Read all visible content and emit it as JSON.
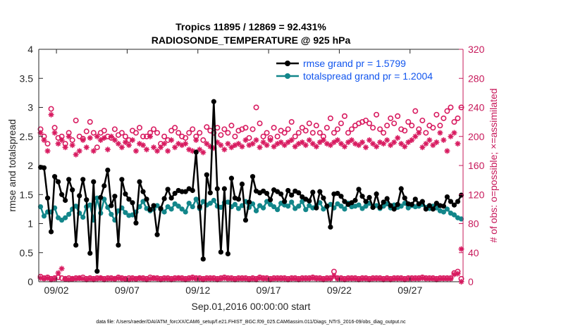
{
  "chart_data": {
    "type": "line",
    "title_line1": "Tropics 11895 / 12869 = 92.431%",
    "title_line2": "RADIOSONDE_TEMPERATURE @ 925 hPa",
    "xlabel": "Sep.01,2016 00:00:00 start",
    "ylabel_left": "rmse and totalspread",
    "ylabel_right": "# of obs: o=possible; ×=assimilated",
    "footer": "data file: /Users/raeder/DAI/ATM_forcXX/CAM6_setup/f.e21.FHIST_BGC.f09_025.CAM6assim.011/Diags_NTrS_2016-09/obs_diag_output.nc",
    "xlim": [
      0.75,
      30.75
    ],
    "ylim_left": [
      0,
      4
    ],
    "ylim_right": [
      0,
      320
    ],
    "x_ticks": [
      {
        "x": 2,
        "label": "09/02"
      },
      {
        "x": 7,
        "label": "09/07"
      },
      {
        "x": 12,
        "label": "09/12"
      },
      {
        "x": 17,
        "label": "09/17"
      },
      {
        "x": 22,
        "label": "09/22"
      },
      {
        "x": 27,
        "label": "09/27"
      }
    ],
    "y_ticks_left": [
      {
        "v": 0,
        "label": "0"
      },
      {
        "v": 0.5,
        "label": "0.5"
      },
      {
        "v": 1,
        "label": "1"
      },
      {
        "v": 1.5,
        "label": "1.5"
      },
      {
        "v": 2,
        "label": "2"
      },
      {
        "v": 2.5,
        "label": "2.5"
      },
      {
        "v": 3,
        "label": "3"
      },
      {
        "v": 3.5,
        "label": "3.5"
      },
      {
        "v": 4,
        "label": "4"
      }
    ],
    "y_ticks_right": [
      {
        "v": 0,
        "label": "0"
      },
      {
        "v": 40,
        "label": "40"
      },
      {
        "v": 80,
        "label": "80"
      },
      {
        "v": 120,
        "label": "120"
      },
      {
        "v": 160,
        "label": "160"
      },
      {
        "v": 200,
        "label": "200"
      },
      {
        "v": 240,
        "label": "240"
      },
      {
        "v": 280,
        "label": "280"
      },
      {
        "v": 320,
        "label": "320"
      }
    ],
    "legend": [
      {
        "name": "rmse grand pr = 1.5799",
        "color": "#000000"
      },
      {
        "name": "totalspread grand pr = 1.2004",
        "color": "#12868a"
      }
    ],
    "legend_location": "top-right",
    "colors": {
      "rmse": "#000000",
      "spread": "#12868a",
      "obs": "#d81b60",
      "axis": "#262626",
      "right_axis": "#c7185a"
    },
    "x_start": 0.875,
    "x_step": 0.25,
    "rmse": [
      1.97,
      1.96,
      1.44,
      0.86,
      1.81,
      1.72,
      1.5,
      1.4,
      1.76,
      1.58,
      0.63,
      1.48,
      1.76,
      1.41,
      0.49,
      1.72,
      0.18,
      1.45,
      1.65,
      1.92,
      1.31,
      1.47,
      0.63,
      1.76,
      1.51,
      1.42,
      1.36,
      1.01,
      1.72,
      1.55,
      1.42,
      1.24,
      1.31,
      0.81,
      1.26,
      1.43,
      1.59,
      1.44,
      1.52,
      1.57,
      1.55,
      1.55,
      1.6,
      1.57,
      2.23,
      1.29,
      0.39,
      1.84,
      1.53,
      3.1,
      1.6,
      0.51,
      1.6,
      0.48,
      1.78,
      1.44,
      1.42,
      1.68,
      1.06,
      1.37,
      1.81,
      1.56,
      1.53,
      1.56,
      1.52,
      1.41,
      1.58,
      1.55,
      1.51,
      1.38,
      1.57,
      1.49,
      1.56,
      1.53,
      1.46,
      1.42,
      1.39,
      1.54,
      1.27,
      1.55,
      1.44,
      1.3,
      0.94,
      1.51,
      1.52,
      1.47,
      1.38,
      1.33,
      1.36,
      1.4,
      1.59,
      1.47,
      1.38,
      1.45,
      1.28,
      1.51,
      1.28,
      1.37,
      1.43,
      1.31,
      1.25,
      1.33,
      1.6,
      1.44,
      1.34,
      1.33,
      1.42,
      1.34,
      1.38,
      1.25,
      1.31,
      1.25,
      1.35,
      1.31,
      1.3,
      1.46,
      1.38,
      1.32,
      1.38,
      1.49
    ],
    "spread": [
      1.29,
      1.13,
      1.2,
      1.2,
      1.27,
      1.1,
      1.06,
      1.1,
      1.16,
      1.25,
      1.3,
      1.18,
      1.11,
      1.29,
      1.32,
      1.06,
      1.44,
      1.18,
      1.42,
      1.28,
      1.16,
      1.06,
      1.22,
      1.27,
      1.19,
      1.14,
      1.15,
      1.2,
      1.29,
      1.38,
      1.26,
      1.22,
      1.25,
      1.31,
      1.25,
      1.2,
      1.29,
      1.25,
      1.34,
      1.3,
      1.25,
      1.2,
      1.35,
      1.29,
      1.42,
      1.26,
      1.38,
      1.32,
      1.35,
      1.4,
      1.3,
      1.28,
      1.36,
      1.37,
      1.29,
      1.33,
      1.26,
      1.31,
      1.38,
      1.28,
      1.34,
      1.22,
      1.31,
      1.27,
      1.38,
      1.33,
      1.29,
      1.24,
      1.35,
      1.32,
      1.3,
      1.37,
      1.26,
      1.3,
      1.38,
      1.24,
      1.31,
      1.27,
      1.3,
      1.36,
      1.25,
      1.29,
      1.33,
      1.27,
      1.34,
      1.3,
      1.25,
      1.35,
      1.29,
      1.3,
      1.32,
      1.26,
      1.3,
      1.35,
      1.28,
      1.31,
      1.26,
      1.3,
      1.34,
      1.27,
      1.32,
      1.28,
      1.3,
      1.35,
      1.27,
      1.31,
      1.29,
      1.3,
      1.33,
      1.28,
      1.26,
      1.3,
      1.27,
      1.22,
      1.2,
      1.25,
      1.18,
      1.15,
      1.1,
      1.08
    ],
    "possible": [
      210,
      200,
      190,
      238,
      212,
      198,
      200,
      190,
      205,
      195,
      222,
      200,
      197,
      207,
      220,
      205,
      185,
      205,
      208,
      200,
      198,
      210,
      202,
      205,
      200,
      195,
      208,
      205,
      212,
      200,
      200,
      205,
      210,
      205,
      190,
      200,
      195,
      208,
      212,
      205,
      200,
      198,
      205,
      210,
      200,
      205,
      195,
      213,
      208,
      205,
      212,
      202,
      210,
      205,
      215,
      200,
      208,
      210,
      212,
      198,
      210,
      240,
      218,
      200,
      205,
      198,
      212,
      200,
      208,
      205,
      210,
      220,
      200,
      205,
      212,
      208,
      218,
      205,
      215,
      205,
      200,
      212,
      225,
      205,
      210,
      218,
      228,
      205,
      210,
      215,
      218,
      220,
      222,
      218,
      212,
      230,
      210,
      205,
      215,
      225,
      218,
      228,
      210,
      208,
      220,
      215,
      235,
      210,
      222,
      205,
      215,
      212,
      230,
      215,
      225,
      235,
      240,
      220,
      225,
      240
    ],
    "assimilated": [
      205,
      195,
      180,
      230,
      205,
      190,
      195,
      185,
      200,
      188,
      175,
      180,
      195,
      185,
      198,
      180,
      200,
      195,
      198,
      182,
      200,
      195,
      190,
      185,
      192,
      188,
      195,
      180,
      190,
      188,
      182,
      200,
      185,
      180,
      185,
      190,
      180,
      195,
      185,
      190,
      188,
      190,
      182,
      180,
      195,
      182,
      178,
      190,
      186,
      184,
      192,
      188,
      182,
      190,
      185,
      188,
      190,
      186,
      195,
      188,
      190,
      195,
      185,
      192,
      188,
      195,
      186,
      190,
      192,
      188,
      192,
      195,
      186,
      190,
      192,
      188,
      195,
      190,
      186,
      192,
      195,
      190,
      188,
      192,
      195,
      190,
      186,
      192,
      195,
      190,
      188,
      192,
      185,
      195,
      190,
      186,
      192,
      190,
      195,
      188,
      192,
      198,
      190,
      186,
      192,
      195,
      200,
      205,
      185,
      190,
      195,
      188,
      192,
      205,
      195,
      180,
      200,
      205,
      190,
      45
    ],
    "possible_low": [
      7,
      5,
      6,
      4,
      5,
      6,
      5,
      4,
      5,
      4,
      5,
      5,
      6,
      4,
      5,
      4,
      5,
      5,
      4,
      5,
      5,
      4,
      6,
      5,
      4,
      5,
      5,
      4,
      5,
      5,
      4,
      6,
      5,
      5,
      4,
      5,
      5,
      4,
      5,
      5,
      5,
      4,
      5,
      6,
      5,
      5,
      4,
      5,
      5,
      5,
      4,
      5,
      6,
      5,
      5,
      4,
      5,
      5,
      5,
      4,
      5,
      4,
      6,
      5,
      5,
      4,
      5,
      5,
      5,
      5,
      4,
      5,
      5,
      4,
      5,
      5,
      5,
      6,
      5,
      5,
      4,
      5,
      5,
      14,
      5,
      5,
      4,
      5,
      5,
      5,
      4,
      5,
      5,
      4,
      5,
      5,
      5,
      4,
      5,
      4,
      5,
      5,
      5,
      4,
      5,
      5,
      5,
      5,
      6,
      5,
      5,
      5,
      4,
      5,
      5,
      5,
      5,
      12,
      14,
      4
    ],
    "assimilated_low": [
      5,
      4,
      5,
      3,
      4,
      12,
      18,
      4,
      3,
      4,
      4,
      5,
      4,
      3,
      4,
      3,
      4,
      5,
      3,
      4,
      4,
      4,
      5,
      4,
      4,
      3,
      4,
      4,
      5,
      4,
      3,
      4,
      5,
      4,
      3,
      4,
      4,
      3,
      4,
      5,
      4,
      3,
      4,
      5,
      4,
      4,
      3,
      4,
      4,
      4,
      3,
      4,
      5,
      4,
      4,
      3,
      4,
      4,
      4,
      3,
      4,
      3,
      5,
      4,
      4,
      3,
      4,
      4,
      4,
      4,
      3,
      4,
      4,
      3,
      4,
      4,
      4,
      5,
      4,
      4,
      3,
      4,
      4,
      8,
      4,
      4,
      3,
      4,
      4,
      4,
      3,
      4,
      4,
      3,
      4,
      4,
      4,
      3,
      4,
      3,
      4,
      4,
      4,
      3,
      4,
      4,
      4,
      4,
      5,
      4,
      4,
      4,
      3,
      4,
      4,
      4,
      4,
      10,
      11,
      0
    ]
  }
}
